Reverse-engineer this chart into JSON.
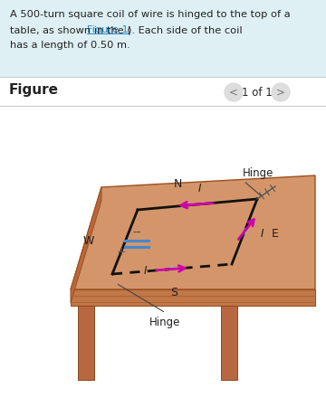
{
  "bg_color": "#ffffff",
  "header_bg": "#dff0f5",
  "figure_label": "Figure",
  "nav_text": "1 of 1",
  "table_top_color": "#d4956a",
  "table_front_color": "#c07848",
  "table_leg_color": "#b86840",
  "table_edge_color": "#9a5020",
  "coil_color": "#111111",
  "arrow_color": "#cc00aa",
  "blue_line_color": "#4488cc",
  "hinge_color": "#555555",
  "text_color": "#222222",
  "link_color": "#2288cc",
  "nav_circle_color": "#dddddd",
  "separator_color": "#cccccc",
  "header_line1": "A 500-turn square coil of wire is hinged to the top of a",
  "header_line2a": "table, as shown in the (",
  "header_line2b": "Figure 1",
  "header_line2c": "). Each side of the coil",
  "header_line3": "has a length of 0.50 m.",
  "compass_N": "N",
  "compass_S": "S",
  "compass_W": "W",
  "compass_E": "E",
  "hinge_label": "Hinge",
  "current_label": "I"
}
